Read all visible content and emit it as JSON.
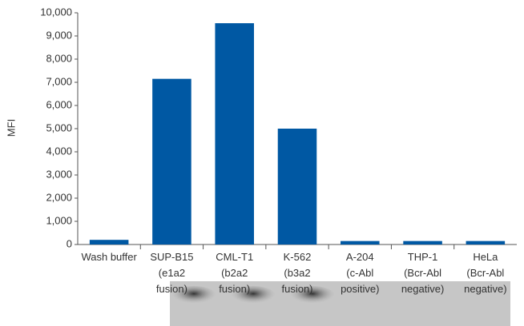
{
  "chart_data": {
    "type": "bar",
    "y_label": "MFI",
    "categories": [
      [
        "Wash buffer"
      ],
      [
        "SUP-B15",
        "(e1a2",
        "fusion)"
      ],
      [
        "CML-T1",
        "(b2a2",
        "fusion)"
      ],
      [
        "K-562",
        "(b3a2",
        "fusion)"
      ],
      [
        "A-204",
        "(c-Abl",
        "positive)"
      ],
      [
        "THP-1",
        "(Bcr-Abl",
        "negative)"
      ],
      [
        "HeLa",
        "(Bcr-Abl",
        "negative)"
      ]
    ],
    "values": [
      200,
      7150,
      9550,
      5000,
      150,
      150,
      150
    ],
    "color": "#0058a3",
    "ylim": [
      0,
      10000
    ],
    "yticks": [
      0,
      {
        "value": 1000,
        "label": "1,000"
      },
      {
        "value": 2000,
        "label": "2,000"
      },
      {
        "value": 3000,
        "label": "3,000"
      },
      {
        "value": 4000,
        "label": "4,000"
      },
      {
        "value": 5000,
        "label": "5,000"
      },
      {
        "value": 6000,
        "label": "6,000"
      },
      {
        "value": 7000,
        "label": "7,000"
      },
      {
        "value": 8000,
        "label": "8,000"
      },
      {
        "value": 9000,
        "label": "9,000"
      },
      {
        "value": 10000,
        "label": "10,000"
      }
    ],
    "grid": false
  }
}
